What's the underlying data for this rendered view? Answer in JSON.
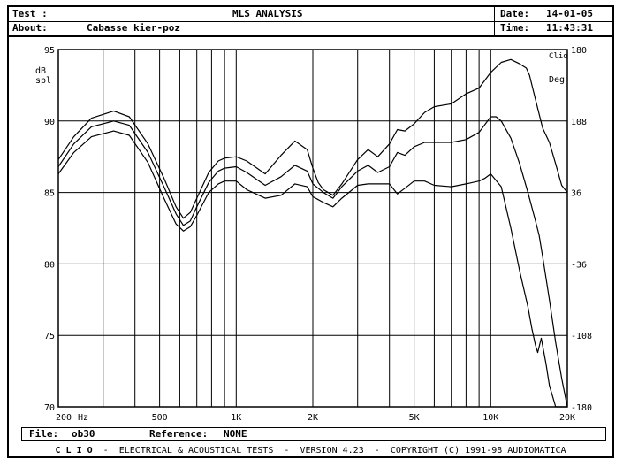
{
  "header": {
    "test_label": "Test :",
    "title": "MLS ANALYSIS",
    "date_label": "Date:",
    "date_value": "14-01-05",
    "about_label": "About:",
    "about_value": "Cabasse kier-poz",
    "time_label": "Time:",
    "time_value": "11:43:31"
  },
  "brand": "Clio",
  "file_bar": {
    "file_label": "File:",
    "file_value": "ob30",
    "reference_label": "Reference:",
    "reference_value": "NONE"
  },
  "footer": {
    "brand": "C L I O",
    "text": "ELECTRICAL & ACOUSTICAL TESTS",
    "version": "VERSION 4.23",
    "copyright": "COPYRIGHT (C) 1991-98 AUDIOMATICA"
  },
  "chart_data": {
    "type": "line",
    "x_scale": "log",
    "xlim": [
      200,
      20000
    ],
    "ylim": [
      70,
      95
    ],
    "y2lim": [
      -180,
      180
    ],
    "ylabel": "dB spl",
    "y2label": "Deg",
    "xlabel": "Hz",
    "x_tick_labels": [
      "200",
      "500",
      "1K",
      "2K",
      "5K",
      "10K",
      "20K"
    ],
    "x_tick_values": [
      200,
      500,
      1000,
      2000,
      5000,
      10000,
      20000
    ],
    "y_ticks": [
      70,
      75,
      80,
      85,
      90,
      95
    ],
    "y2_ticks": [
      -180,
      -108,
      -36,
      36,
      108,
      180
    ],
    "grid": true,
    "series": [
      {
        "x": [
          200,
          230,
          270,
          330,
          380,
          450,
          520,
          580,
          620,
          660,
          700,
          780,
          850,
          900,
          1000,
          1100,
          1300,
          1500,
          1700,
          1900,
          2000,
          2100,
          2200,
          2400,
          2600,
          3000,
          3300,
          3600,
          4000,
          4300,
          4600,
          5000,
          5500,
          6000,
          7000,
          8000,
          9000,
          10000,
          11000,
          12000,
          13000,
          13800,
          14200,
          15000,
          16000,
          17000,
          18000,
          19000,
          20000
        ],
        "y": [
          87.3,
          88.9,
          90.2,
          90.7,
          90.3,
          88.4,
          86.0,
          84.0,
          83.2,
          83.6,
          84.6,
          86.4,
          87.2,
          87.4,
          87.5,
          87.2,
          86.3,
          87.6,
          88.6,
          88.0,
          86.7,
          85.7,
          85.2,
          84.8,
          85.6,
          87.3,
          88.0,
          87.5,
          88.4,
          89.4,
          89.3,
          89.8,
          90.6,
          91.0,
          91.2,
          91.9,
          92.3,
          93.4,
          94.1,
          94.3,
          94.0,
          93.7,
          93.2,
          91.5,
          89.5,
          88.5,
          87.0,
          85.5,
          85.0
        ]
      },
      {
        "x": [
          200,
          230,
          270,
          330,
          380,
          450,
          520,
          580,
          620,
          660,
          700,
          780,
          850,
          900,
          1000,
          1100,
          1300,
          1500,
          1700,
          1900,
          2000,
          2100,
          2200,
          2400,
          2600,
          3000,
          3300,
          3600,
          4000,
          4300,
          4600,
          5000,
          5500,
          6000,
          7000,
          8000,
          9000,
          10000,
          10500,
          11000,
          12000,
          13000,
          14000,
          15000,
          15500,
          16000,
          17000,
          18000,
          19000,
          20000
        ],
        "y": [
          86.8,
          88.4,
          89.6,
          90.0,
          89.7,
          87.8,
          85.4,
          83.5,
          82.7,
          83.0,
          84.0,
          85.7,
          86.5,
          86.7,
          86.8,
          86.4,
          85.5,
          86.1,
          86.9,
          86.5,
          85.6,
          85.3,
          85.0,
          84.6,
          85.4,
          86.5,
          86.9,
          86.4,
          86.8,
          87.8,
          87.6,
          88.2,
          88.5,
          88.5,
          88.5,
          88.7,
          89.2,
          90.3,
          90.3,
          90.0,
          88.8,
          87.0,
          85.0,
          83.0,
          82.0,
          80.5,
          77.5,
          74.5,
          72.0,
          70.0
        ]
      },
      {
        "x": [
          200,
          230,
          270,
          330,
          380,
          450,
          520,
          580,
          620,
          660,
          700,
          780,
          850,
          900,
          1000,
          1100,
          1300,
          1500,
          1700,
          1900,
          2000,
          2100,
          2200,
          2400,
          2600,
          3000,
          3300,
          3600,
          4000,
          4300,
          4600,
          5000,
          5500,
          6000,
          7000,
          8000,
          9000,
          9500,
          10000,
          11000,
          12000,
          13000,
          14000,
          14500,
          15000,
          15300,
          15800,
          16500,
          17000,
          18000,
          19000,
          20000
        ],
        "y": [
          86.3,
          87.8,
          88.9,
          89.3,
          89.0,
          87.1,
          84.6,
          82.8,
          82.3,
          82.6,
          83.4,
          85.0,
          85.6,
          85.8,
          85.8,
          85.2,
          84.6,
          84.8,
          85.6,
          85.4,
          84.7,
          84.5,
          84.3,
          84.0,
          84.6,
          85.5,
          85.6,
          85.6,
          85.6,
          84.9,
          85.3,
          85.8,
          85.8,
          85.5,
          85.4,
          85.6,
          85.8,
          86.0,
          86.3,
          85.4,
          82.5,
          79.5,
          77.0,
          75.5,
          74.3,
          73.8,
          74.8,
          73.0,
          71.5,
          70.0,
          70.0,
          70.0
        ]
      }
    ]
  }
}
